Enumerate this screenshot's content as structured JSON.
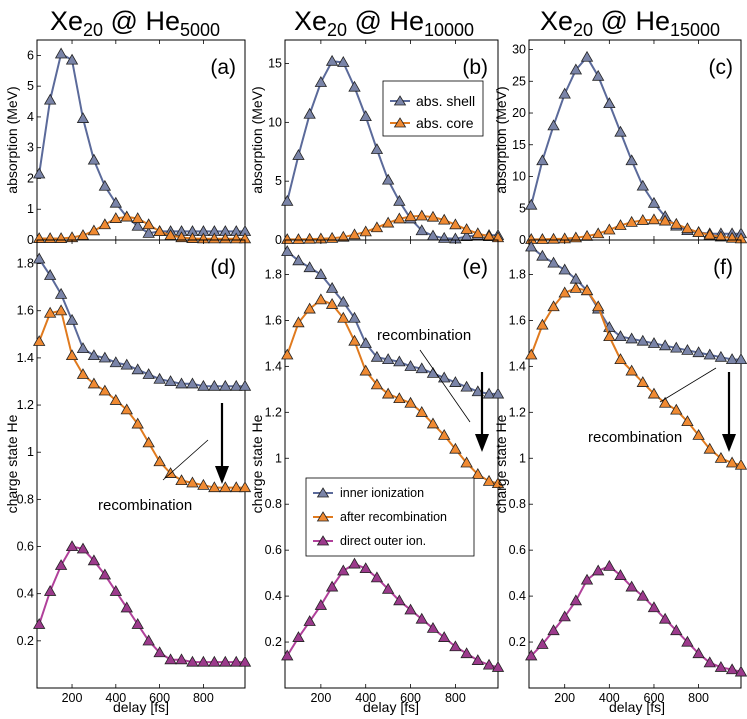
{
  "colors": {
    "blue_fill": "#7a84a8",
    "blue_line": "#5b6a9a",
    "orange_fill": "#f08a32",
    "orange_line": "#e07a1e",
    "magenta_fill": "#9c3a8c",
    "magenta_line": "#b0409a"
  },
  "chart_data": [
    {
      "id": "col1",
      "type": "line",
      "title_main": "Xe",
      "title_n": "20",
      "title_at": " @ He",
      "title_m": "5000",
      "xlabel": "delay [fs]",
      "xlim": [
        40,
        990
      ],
      "xticks": [
        200,
        400,
        600,
        800
      ],
      "absorption": {
        "panel_label": "(a)",
        "ylabel": "absorption (MeV)",
        "ylim": [
          0,
          6.5
        ],
        "yticks": [
          0,
          1,
          2,
          3,
          4,
          5,
          6
        ],
        "series": [
          {
            "name": "abs. shell",
            "color": "blue",
            "x": [
              50,
              100,
              150,
              200,
              250,
              300,
              350,
              400,
              450,
              500,
              550,
              600,
              650,
              700,
              750,
              800,
              850,
              900,
              950,
              990
            ],
            "y": [
              2.15,
              4.55,
              6.05,
              5.85,
              3.95,
              2.6,
              1.75,
              1.2,
              0.75,
              0.45,
              0.22,
              0.28,
              0.28,
              0.28,
              0.28,
              0.28,
              0.28,
              0.28,
              0.28,
              0.28
            ]
          },
          {
            "name": "abs. core",
            "color": "orange",
            "x": [
              50,
              100,
              150,
              200,
              250,
              300,
              350,
              400,
              450,
              500,
              550,
              600,
              650,
              700,
              750,
              800,
              850,
              900,
              950,
              990
            ],
            "y": [
              0.05,
              0.05,
              0.05,
              0.08,
              0.15,
              0.3,
              0.5,
              0.7,
              0.75,
              0.7,
              0.5,
              0.28,
              0.15,
              0.08,
              0.05,
              0.04,
              0.04,
              0.04,
              0.04,
              0.04
            ]
          }
        ]
      },
      "charge": {
        "panel_label": "(d)",
        "ylabel": "charge state He",
        "ylim": [
          0,
          1.9
        ],
        "yticks": [
          0.2,
          0.4,
          0.6,
          0.8,
          1,
          1.2,
          1.4,
          1.6,
          1.8
        ],
        "annotation": "recombination",
        "series": [
          {
            "name": "inner ionization",
            "color": "blue",
            "x": [
              50,
              100,
              150,
              200,
              250,
              300,
              350,
              400,
              450,
              500,
              550,
              600,
              650,
              700,
              750,
              800,
              850,
              900,
              950,
              990
            ],
            "y": [
              1.82,
              1.75,
              1.67,
              1.56,
              1.44,
              1.41,
              1.4,
              1.38,
              1.37,
              1.35,
              1.33,
              1.31,
              1.3,
              1.29,
              1.29,
              1.28,
              1.28,
              1.28,
              1.28,
              1.28
            ]
          },
          {
            "name": "after recombination",
            "color": "orange",
            "x": [
              50,
              100,
              150,
              200,
              250,
              300,
              350,
              400,
              450,
              500,
              550,
              600,
              650,
              700,
              750,
              800,
              850,
              900,
              950,
              990
            ],
            "y": [
              1.47,
              1.59,
              1.6,
              1.41,
              1.33,
              1.29,
              1.26,
              1.22,
              1.18,
              1.12,
              1.04,
              0.96,
              0.91,
              0.88,
              0.87,
              0.86,
              0.85,
              0.85,
              0.85,
              0.85
            ]
          },
          {
            "name": "direct outer ion.",
            "color": "magenta",
            "x": [
              50,
              100,
              150,
              200,
              250,
              300,
              350,
              400,
              450,
              500,
              550,
              600,
              650,
              700,
              750,
              800,
              850,
              900,
              950,
              990
            ],
            "y": [
              0.27,
              0.41,
              0.52,
              0.6,
              0.59,
              0.54,
              0.48,
              0.41,
              0.34,
              0.27,
              0.2,
              0.15,
              0.12,
              0.12,
              0.11,
              0.11,
              0.11,
              0.11,
              0.11,
              0.11
            ]
          }
        ]
      }
    },
    {
      "id": "col2",
      "type": "line",
      "title_main": "Xe",
      "title_n": "20",
      "title_at": " @ He",
      "title_m": "10000",
      "xlabel": "delay [fs]",
      "xlim": [
        40,
        990
      ],
      "xticks": [
        200,
        400,
        600,
        800
      ],
      "absorption": {
        "panel_label": "(b)",
        "ylabel": "absorption (MeV)",
        "ylim": [
          0,
          17
        ],
        "yticks": [
          0,
          5,
          10,
          15
        ],
        "legend": [
          "abs. shell",
          "abs. core"
        ],
        "series": [
          {
            "name": "abs. shell",
            "color": "blue",
            "x": [
              50,
              100,
              150,
              200,
              250,
              300,
              350,
              400,
              450,
              500,
              550,
              600,
              650,
              700,
              750,
              800,
              850,
              900,
              950,
              990
            ],
            "y": [
              3.3,
              7.2,
              10.7,
              13.4,
              15.2,
              15.1,
              13.0,
              10.5,
              7.7,
              5.1,
              3.3,
              1.8,
              0.8,
              0.35,
              0.15,
              0.1,
              0.3,
              0.4,
              0.4,
              0.4
            ]
          },
          {
            "name": "abs. core",
            "color": "orange",
            "x": [
              50,
              100,
              150,
              200,
              250,
              300,
              350,
              400,
              450,
              500,
              550,
              600,
              650,
              700,
              750,
              800,
              850,
              900,
              950,
              990
            ],
            "y": [
              0.05,
              0.05,
              0.08,
              0.1,
              0.15,
              0.25,
              0.45,
              0.7,
              1.05,
              1.45,
              1.8,
              2.0,
              2.05,
              1.95,
              1.7,
              1.3,
              0.9,
              0.55,
              0.3,
              0.2
            ]
          }
        ]
      },
      "charge": {
        "panel_label": "(e)",
        "ylabel": "charge state He",
        "ylim": [
          0,
          1.95
        ],
        "yticks": [
          0.2,
          0.4,
          0.6,
          0.8,
          1,
          1.2,
          1.4,
          1.6,
          1.8
        ],
        "annotation": "recombination",
        "legend": [
          "inner ionization",
          "after recombination",
          "direct outer ion."
        ],
        "series": [
          {
            "name": "inner ionization",
            "color": "blue",
            "x": [
              50,
              100,
              150,
              200,
              250,
              300,
              350,
              400,
              450,
              500,
              550,
              600,
              650,
              700,
              750,
              800,
              850,
              900,
              950,
              990
            ],
            "y": [
              1.9,
              1.86,
              1.83,
              1.8,
              1.74,
              1.68,
              1.61,
              1.5,
              1.44,
              1.43,
              1.42,
              1.4,
              1.39,
              1.37,
              1.35,
              1.33,
              1.31,
              1.29,
              1.28,
              1.28
            ]
          },
          {
            "name": "after recombination",
            "color": "orange",
            "x": [
              50,
              100,
              150,
              200,
              250,
              300,
              350,
              400,
              450,
              500,
              550,
              600,
              650,
              700,
              750,
              800,
              850,
              900,
              950,
              990
            ],
            "y": [
              1.45,
              1.59,
              1.65,
              1.69,
              1.67,
              1.61,
              1.51,
              1.38,
              1.32,
              1.28,
              1.26,
              1.24,
              1.2,
              1.15,
              1.1,
              1.04,
              0.98,
              0.93,
              0.9,
              0.89
            ]
          },
          {
            "name": "direct outer ion.",
            "color": "magenta",
            "x": [
              50,
              100,
              150,
              200,
              250,
              300,
              350,
              400,
              450,
              500,
              550,
              600,
              650,
              700,
              750,
              800,
              850,
              900,
              950,
              990
            ],
            "y": [
              0.14,
              0.22,
              0.29,
              0.36,
              0.44,
              0.51,
              0.54,
              0.52,
              0.48,
              0.43,
              0.38,
              0.34,
              0.3,
              0.26,
              0.22,
              0.18,
              0.15,
              0.12,
              0.1,
              0.09
            ]
          }
        ]
      }
    },
    {
      "id": "col3",
      "type": "line",
      "title_main": "Xe",
      "title_n": "20",
      "title_at": " @ He",
      "title_m": "15000",
      "xlabel": "delay [fs]",
      "xlim": [
        40,
        990
      ],
      "xticks": [
        200,
        400,
        600,
        800
      ],
      "absorption": {
        "panel_label": "(c)",
        "ylabel": "absorption (MeV)",
        "ylim": [
          0,
          31.5
        ],
        "yticks": [
          0,
          5,
          10,
          15,
          20,
          25,
          30
        ],
        "series": [
          {
            "name": "abs. shell",
            "color": "blue",
            "x": [
              50,
              100,
              150,
              200,
              250,
              300,
              350,
              400,
              450,
              500,
              550,
              600,
              650,
              700,
              750,
              800,
              850,
              900,
              950,
              990
            ],
            "y": [
              5.5,
              12.5,
              18.0,
              23.0,
              26.8,
              28.8,
              25.8,
              21.5,
              17.0,
              12.5,
              8.5,
              5.8,
              3.7,
              2.2,
              1.5,
              1.2,
              1.0,
              1.0,
              1.0,
              1.0
            ]
          },
          {
            "name": "abs. core",
            "color": "orange",
            "x": [
              50,
              100,
              150,
              200,
              250,
              300,
              350,
              400,
              450,
              500,
              550,
              600,
              650,
              700,
              750,
              800,
              850,
              900,
              950,
              990
            ],
            "y": [
              0.1,
              0.1,
              0.15,
              0.2,
              0.35,
              0.6,
              1.0,
              1.6,
              2.3,
              2.8,
              3.1,
              3.2,
              3.0,
              2.5,
              1.8,
              1.2,
              0.8,
              0.5,
              0.3,
              0.2
            ]
          }
        ]
      },
      "charge": {
        "panel_label": "(f)",
        "ylabel": "charge state He",
        "ylim": [
          0,
          1.95
        ],
        "yticks": [
          0.2,
          0.4,
          0.6,
          0.8,
          1,
          1.2,
          1.4,
          1.6,
          1.8
        ],
        "annotation": "recombination",
        "series": [
          {
            "name": "inner ionization",
            "color": "blue",
            "x": [
              50,
              100,
              150,
              200,
              250,
              300,
              350,
              400,
              450,
              500,
              550,
              600,
              650,
              700,
              750,
              800,
              850,
              900,
              950,
              990
            ],
            "y": [
              1.92,
              1.88,
              1.85,
              1.82,
              1.78,
              1.73,
              1.65,
              1.57,
              1.53,
              1.52,
              1.51,
              1.5,
              1.49,
              1.48,
              1.47,
              1.46,
              1.45,
              1.44,
              1.43,
              1.43
            ]
          },
          {
            "name": "after recombination",
            "color": "orange",
            "x": [
              50,
              100,
              150,
              200,
              250,
              300,
              350,
              400,
              450,
              500,
              550,
              600,
              650,
              700,
              750,
              800,
              850,
              900,
              950,
              990
            ],
            "y": [
              1.45,
              1.58,
              1.66,
              1.72,
              1.74,
              1.73,
              1.66,
              1.53,
              1.43,
              1.38,
              1.33,
              1.28,
              1.24,
              1.21,
              1.16,
              1.1,
              1.04,
              1.0,
              0.98,
              0.97
            ]
          },
          {
            "name": "direct outer ion.",
            "color": "magenta",
            "x": [
              50,
              100,
              150,
              200,
              250,
              300,
              350,
              400,
              450,
              500,
              550,
              600,
              650,
              700,
              750,
              800,
              850,
              900,
              950,
              990
            ],
            "y": [
              0.14,
              0.19,
              0.25,
              0.31,
              0.38,
              0.47,
              0.51,
              0.53,
              0.49,
              0.44,
              0.4,
              0.35,
              0.3,
              0.25,
              0.2,
              0.15,
              0.11,
              0.09,
              0.08,
              0.07
            ]
          }
        ]
      }
    }
  ]
}
